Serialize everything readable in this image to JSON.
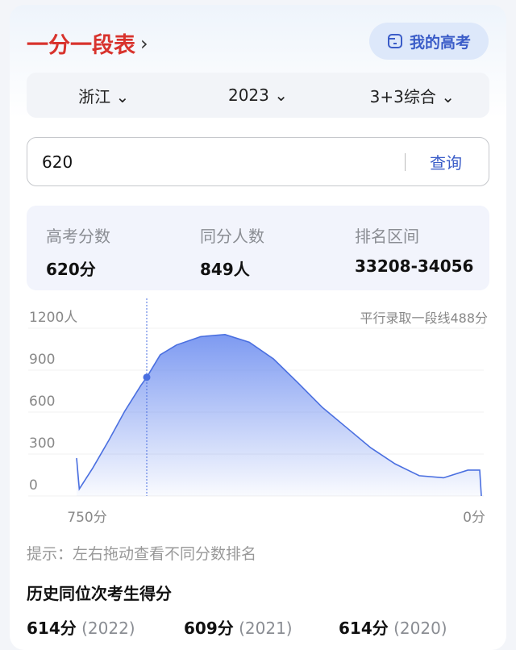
{
  "header": {
    "title": "一分一段表",
    "my_button": "我的高考"
  },
  "filters": [
    {
      "label": "浙江"
    },
    {
      "label": "2023"
    },
    {
      "label": "3+3综合"
    }
  ],
  "search": {
    "value": "620",
    "button": "查询"
  },
  "stats": [
    {
      "label": "高考分数",
      "value": "620分"
    },
    {
      "label": "同分人数",
      "value": "849人"
    },
    {
      "label": "排名区间",
      "value": "33208-34056"
    }
  ],
  "chart_data": {
    "type": "area",
    "ylabel_unit": "1200人",
    "y_ticks": [
      "1200人",
      "900",
      "600",
      "300",
      "0"
    ],
    "ylim": [
      0,
      1200
    ],
    "x_labels": [
      "750分",
      "0分"
    ],
    "xlim": [
      750,
      0
    ],
    "annotation": "平行录取一段线488分",
    "selected": {
      "score": 620,
      "count": 849
    },
    "line_color": "#4a6fe0",
    "points": [
      [
        750,
        271
      ],
      [
        745,
        50
      ],
      [
        720,
        200
      ],
      [
        690,
        400
      ],
      [
        661,
        605
      ],
      [
        631,
        790
      ],
      [
        620,
        849
      ],
      [
        595,
        1010
      ],
      [
        565,
        1080
      ],
      [
        520,
        1140
      ],
      [
        475,
        1155
      ],
      [
        430,
        1100
      ],
      [
        385,
        980
      ],
      [
        340,
        810
      ],
      [
        295,
        635
      ],
      [
        250,
        490
      ],
      [
        205,
        345
      ],
      [
        160,
        230
      ],
      [
        115,
        145
      ],
      [
        70,
        130
      ],
      [
        25,
        185
      ],
      [
        3,
        185
      ],
      [
        0,
        0
      ]
    ]
  },
  "hint": "提示：左右拖动查看不同分数排名",
  "history": {
    "title": "历史同位次考生得分",
    "items": [
      {
        "score": "614分",
        "year": "(2022)"
      },
      {
        "score": "609分",
        "year": "(2021)"
      },
      {
        "score": "614分",
        "year": "(2020)"
      }
    ]
  }
}
